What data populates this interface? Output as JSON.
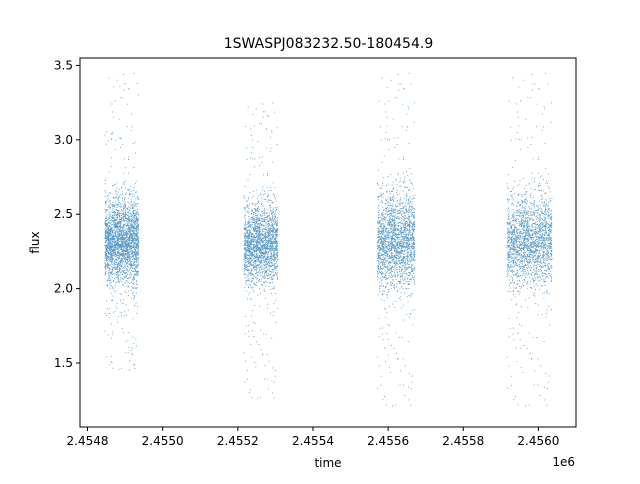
{
  "chart_data": {
    "type": "scatter",
    "title": "1SWASPJ083232.50-180454.9",
    "xlabel": "time",
    "ylabel": "flux",
    "x_offset_label": "1e6",
    "xlim": [
      2454780,
      2456100
    ],
    "ylim": [
      1.07,
      3.55
    ],
    "x_ticks": [
      2454800,
      2455000,
      2455200,
      2455400,
      2455600,
      2455800,
      2456000
    ],
    "x_tick_labels": [
      "2.4548",
      "2.4550",
      "2.4552",
      "2.4554",
      "2.4556",
      "2.4558",
      "2.4560"
    ],
    "y_ticks": [
      1.5,
      2.0,
      2.5,
      3.0,
      3.5
    ],
    "y_tick_labels": [
      "1.5",
      "2.0",
      "2.5",
      "3.0",
      "3.5"
    ],
    "grid": false,
    "marker_color": "#1f77b4",
    "series": [
      {
        "values_summary": "dense flux clusters per observing season",
        "clusters": [
          {
            "x_start": 2454845,
            "x_end": 2454935,
            "center": 2.32,
            "spread": 0.14,
            "low_tail": 1.45,
            "high_tail": 3.45
          },
          {
            "x_start": 2455215,
            "x_end": 2455305,
            "center": 2.3,
            "spread": 0.13,
            "low_tail": 1.25,
            "high_tail": 3.25
          },
          {
            "x_start": 2455570,
            "x_end": 2455670,
            "center": 2.32,
            "spread": 0.16,
            "low_tail": 1.2,
            "high_tail": 3.45
          },
          {
            "x_start": 2455915,
            "x_end": 2456035,
            "center": 2.32,
            "spread": 0.15,
            "low_tail": 1.2,
            "high_tail": 3.45
          }
        ]
      }
    ]
  }
}
